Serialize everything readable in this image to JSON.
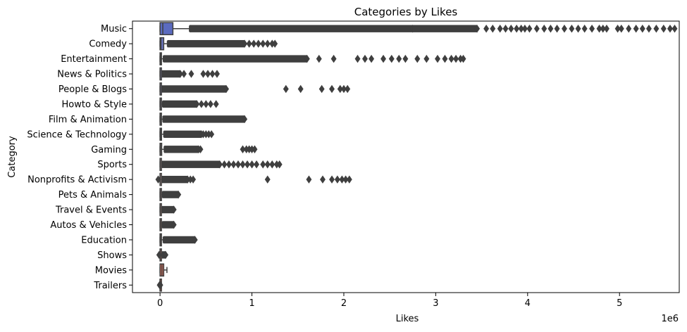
{
  "chart_data": {
    "type": "box",
    "orientation": "horizontal",
    "title": "Categories by Likes",
    "xlabel": "Likes",
    "ylabel": "Category",
    "x_scale_label": "1e6",
    "xlim": [
      -0.3,
      5.65
    ],
    "x_ticks": [
      0,
      1,
      2,
      3,
      4,
      5
    ],
    "x_tick_labels": [
      "0",
      "1",
      "2",
      "3",
      "4",
      "5"
    ],
    "grid": false,
    "legend": "none",
    "colors": {
      "box_fill": [
        "#5b6bc0",
        "#6a74bd",
        "#7e82be",
        "#8d8cbe",
        "#9c96c0",
        "#ab9fc0",
        "#b8a6bf",
        "#c4adbe",
        "#cfb2bd",
        "#d9b5b9",
        "#e0b6b5",
        "#e3b2ab",
        "#e4ab9f",
        "#e29f90",
        "#de917f",
        "#d8816d",
        "#cf6f5c",
        "#c25d4c"
      ],
      "edge": "#3f3f3f"
    },
    "categories": [
      {
        "name": "Music",
        "q1": 0.0,
        "median": 0.03,
        "q3": 0.14,
        "whisker_low": 0.0,
        "whisker_high": 0.32,
        "outlier_bands": [
          [
            0.32,
            2.75
          ],
          [
            2.75,
            3.45
          ]
        ],
        "outliers": [
          3.55,
          3.62,
          3.7,
          3.76,
          3.82,
          3.88,
          3.93,
          3.97,
          4.02,
          4.1,
          4.18,
          4.25,
          4.32,
          4.4,
          4.48,
          4.55,
          4.62,
          4.7,
          4.78,
          4.82,
          4.86,
          4.98,
          5.02,
          5.1,
          5.18,
          5.25,
          5.32,
          5.4,
          5.48,
          5.55,
          5.6
        ]
      },
      {
        "name": "Comedy",
        "q1": 0.0,
        "median": 0.01,
        "q3": 0.04,
        "whisker_low": 0.0,
        "whisker_high": 0.08,
        "outlier_bands": [
          [
            0.08,
            0.92
          ]
        ],
        "outliers": [
          0.97,
          1.02,
          1.07,
          1.12,
          1.17,
          1.22,
          1.25
        ]
      },
      {
        "name": "Entertainment",
        "q1": 0.0,
        "median": 0.005,
        "q3": 0.015,
        "whisker_low": 0.0,
        "whisker_high": 0.035,
        "outlier_bands": [
          [
            0.035,
            1.6
          ]
        ],
        "outliers": [
          1.73,
          1.89,
          2.15,
          2.23,
          2.3,
          2.43,
          2.52,
          2.6,
          2.67,
          2.8,
          2.9,
          3.02,
          3.1,
          3.17,
          3.22,
          3.27,
          3.3
        ]
      },
      {
        "name": "News & Politics",
        "q1": 0.0,
        "median": 0.001,
        "q3": 0.004,
        "whisker_low": 0.0,
        "whisker_high": 0.01,
        "outlier_bands": [
          [
            0.01,
            0.22
          ]
        ],
        "outliers": [
          0.26,
          0.34,
          0.47,
          0.52,
          0.57,
          0.62
        ]
      },
      {
        "name": "People & Blogs",
        "q1": 0.0,
        "median": 0.002,
        "q3": 0.007,
        "whisker_low": 0.0,
        "whisker_high": 0.018,
        "outlier_bands": [
          [
            0.018,
            0.72
          ]
        ],
        "outliers": [
          1.37,
          1.53,
          1.76,
          1.87,
          1.96,
          2.0,
          2.04
        ]
      },
      {
        "name": "Howto & Style",
        "q1": 0.0,
        "median": 0.003,
        "q3": 0.011,
        "whisker_low": 0.0,
        "whisker_high": 0.027,
        "outlier_bands": [
          [
            0.027,
            0.4
          ]
        ],
        "outliers": [
          0.45,
          0.5,
          0.55,
          0.61
        ]
      },
      {
        "name": "Film & Animation",
        "q1": 0.0,
        "median": 0.004,
        "q3": 0.013,
        "whisker_low": 0.0,
        "whisker_high": 0.031,
        "outlier_bands": [
          [
            0.031,
            0.92
          ]
        ],
        "outliers": []
      },
      {
        "name": "Science & Technology",
        "q1": 0.0,
        "median": 0.005,
        "q3": 0.016,
        "whisker_low": 0.0,
        "whisker_high": 0.04,
        "outlier_bands": [
          [
            0.04,
            0.45
          ]
        ],
        "outliers": [
          0.47,
          0.5,
          0.53,
          0.56
        ]
      },
      {
        "name": "Gaming",
        "q1": 0.0,
        "median": 0.006,
        "q3": 0.018,
        "whisker_low": 0.0,
        "whisker_high": 0.045,
        "outlier_bands": [
          [
            0.045,
            0.42
          ]
        ],
        "outliers": [
          0.44,
          0.9,
          0.94,
          0.97,
          1.0,
          1.03
        ]
      },
      {
        "name": "Sports",
        "q1": 0.0,
        "median": 0.002,
        "q3": 0.008,
        "whisker_low": 0.0,
        "whisker_high": 0.02,
        "outlier_bands": [
          [
            0.02,
            0.65
          ]
        ],
        "outliers": [
          0.7,
          0.75,
          0.8,
          0.85,
          0.9,
          0.95,
          1.0,
          1.05,
          1.12,
          1.17,
          1.22,
          1.27,
          1.3
        ]
      },
      {
        "name": "Nonprofits & Activism",
        "q1": 0.0,
        "median": 0.001,
        "q3": 0.005,
        "whisker_low": 0.0,
        "whisker_high": 0.012,
        "outlier_bands": [
          [
            0.012,
            0.3
          ]
        ],
        "outliers": [
          -0.02,
          0.33,
          0.36,
          1.17,
          1.62,
          1.77,
          1.87,
          1.93,
          1.98,
          2.02,
          2.06
        ]
      },
      {
        "name": "Pets & Animals",
        "q1": 0.0,
        "median": 0.003,
        "q3": 0.01,
        "whisker_low": 0.0,
        "whisker_high": 0.025,
        "outlier_bands": [
          [
            0.025,
            0.2
          ]
        ],
        "outliers": []
      },
      {
        "name": "Travel & Events",
        "q1": 0.0,
        "median": 0.002,
        "q3": 0.008,
        "whisker_low": 0.0,
        "whisker_high": 0.02,
        "outlier_bands": [
          [
            0.02,
            0.15
          ]
        ],
        "outliers": []
      },
      {
        "name": "Autos & Vehicles",
        "q1": 0.0,
        "median": 0.003,
        "q3": 0.01,
        "whisker_low": 0.0,
        "whisker_high": 0.024,
        "outlier_bands": [
          [
            0.024,
            0.15
          ]
        ],
        "outliers": []
      },
      {
        "name": "Education",
        "q1": 0.0,
        "median": 0.004,
        "q3": 0.014,
        "whisker_low": 0.0,
        "whisker_high": 0.034,
        "outlier_bands": [
          [
            0.034,
            0.38
          ]
        ],
        "outliers": []
      },
      {
        "name": "Shows",
        "q1": 0.0,
        "median": 0.002,
        "q3": 0.008,
        "whisker_low": 0.0,
        "whisker_high": 0.02,
        "outlier_bands": [
          [
            0.02,
            0.06
          ]
        ],
        "outliers": [
          -0.01,
          0.06
        ]
      },
      {
        "name": "Movies",
        "q1": 0.0,
        "median": 0.02,
        "q3": 0.04,
        "whisker_low": 0.0,
        "whisker_high": 0.075,
        "outlier_bands": [],
        "outliers": []
      },
      {
        "name": "Trailers",
        "q1": 0.0,
        "median": 0.0,
        "q3": 0.003,
        "whisker_low": 0.0,
        "whisker_high": 0.006,
        "outlier_bands": [],
        "outliers": [
          -0.005,
          0.004
        ]
      }
    ]
  }
}
